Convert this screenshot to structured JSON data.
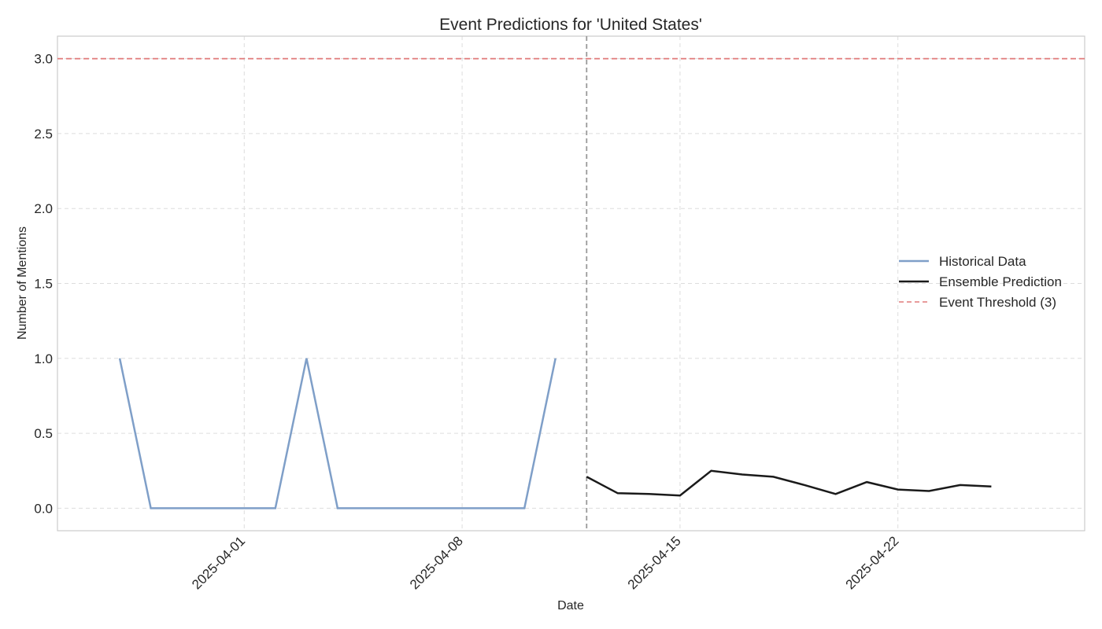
{
  "chart_data": {
    "type": "line",
    "title": "Event Predictions for 'United States'",
    "xlabel": "Date",
    "ylabel": "Number of Mentions",
    "x_tick_labels": [
      "2025-04-01",
      "2025-04-08",
      "2025-04-15",
      "2025-04-22"
    ],
    "y_tick_labels": [
      "0.0",
      "0.5",
      "1.0",
      "1.5",
      "2.0",
      "2.5",
      "3.0"
    ],
    "xlim": [
      "2025-03-26",
      "2025-04-28"
    ],
    "ylim": [
      -0.15,
      3.15
    ],
    "grid": true,
    "legend_position": "center-right",
    "series": [
      {
        "name": "Historical Data",
        "color": "#7f9fc8",
        "style": "solid",
        "x": [
          "2025-03-28",
          "2025-03-29",
          "2025-03-30",
          "2025-03-31",
          "2025-04-01",
          "2025-04-02",
          "2025-04-03",
          "2025-04-04",
          "2025-04-05",
          "2025-04-06",
          "2025-04-07",
          "2025-04-08",
          "2025-04-09",
          "2025-04-10",
          "2025-04-11"
        ],
        "values": [
          1,
          0,
          0,
          0,
          0,
          0,
          1,
          0,
          0,
          0,
          0,
          0,
          0,
          0,
          1
        ]
      },
      {
        "name": "Ensemble Prediction",
        "color": "#1a1a1a",
        "style": "solid",
        "x": [
          "2025-04-12",
          "2025-04-13",
          "2025-04-14",
          "2025-04-15",
          "2025-04-16",
          "2025-04-17",
          "2025-04-18",
          "2025-04-19",
          "2025-04-20",
          "2025-04-21",
          "2025-04-22",
          "2025-04-23",
          "2025-04-24",
          "2025-04-25"
        ],
        "values": [
          0.21,
          0.1,
          0.095,
          0.085,
          0.25,
          0.225,
          0.21,
          0.155,
          0.095,
          0.175,
          0.125,
          0.115,
          0.155,
          0.145
        ]
      }
    ],
    "threshold": {
      "name": "Event Threshold (3)",
      "value": 3,
      "color": "#e07a7a",
      "style": "dashed"
    },
    "split_marker": {
      "x": "2025-04-12",
      "color": "#999999",
      "style": "dashed"
    }
  }
}
